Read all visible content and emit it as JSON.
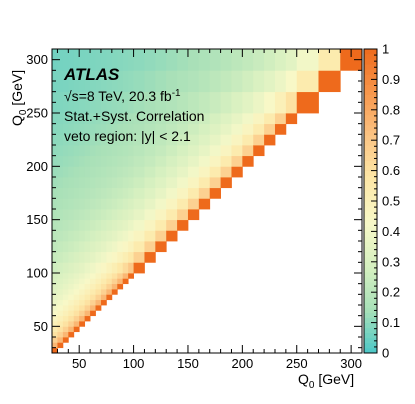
{
  "chart_data": {
    "type": "heatmap",
    "title": "",
    "xlabel": "Q0 [GeV]",
    "ylabel": "Q0 [GeV]",
    "xlim": [
      25,
      310
    ],
    "ylim": [
      25,
      310
    ],
    "zlim": [
      0,
      1
    ],
    "x_ticks": [
      50,
      100,
      150,
      200,
      250,
      300
    ],
    "y_ticks": [
      50,
      100,
      150,
      200,
      250,
      300
    ],
    "z_ticks": [
      0,
      0.1,
      0.2,
      0.3,
      0.4,
      0.5,
      0.6,
      0.7,
      0.8,
      0.9,
      1
    ],
    "bin_edges": [
      25,
      30,
      35,
      40,
      45,
      50,
      55,
      60,
      65,
      70,
      75,
      80,
      85,
      90,
      95,
      100,
      110,
      120,
      130,
      140,
      150,
      160,
      170,
      180,
      190,
      200,
      210,
      220,
      230,
      240,
      250,
      270,
      290,
      310
    ],
    "colormap": [
      "#4cc8c8",
      "#a8e0b8",
      "#d6f0c0",
      "#f8f8c8",
      "#fde8a8",
      "#fbc484",
      "#f7974c",
      "#ee6a1c"
    ],
    "decorrelation_length_gev": 50,
    "decorrelation_exponent": 0.6,
    "annotations": {
      "experiment": "ATLAS",
      "sqrt_s": "√s",
      "energy_lumi": "=8 TeV, 20.3 fb",
      "lumi_exp": "-1",
      "line2": "Stat.+Syst. Correlation",
      "line3": "veto region: |y| < 2.1"
    },
    "axis_labels": {
      "x_main": "Q",
      "x_sub": "0",
      "x_unit": " [GeV]",
      "y_main": "Q",
      "y_sub": "0",
      "y_unit": " [GeV]"
    }
  }
}
